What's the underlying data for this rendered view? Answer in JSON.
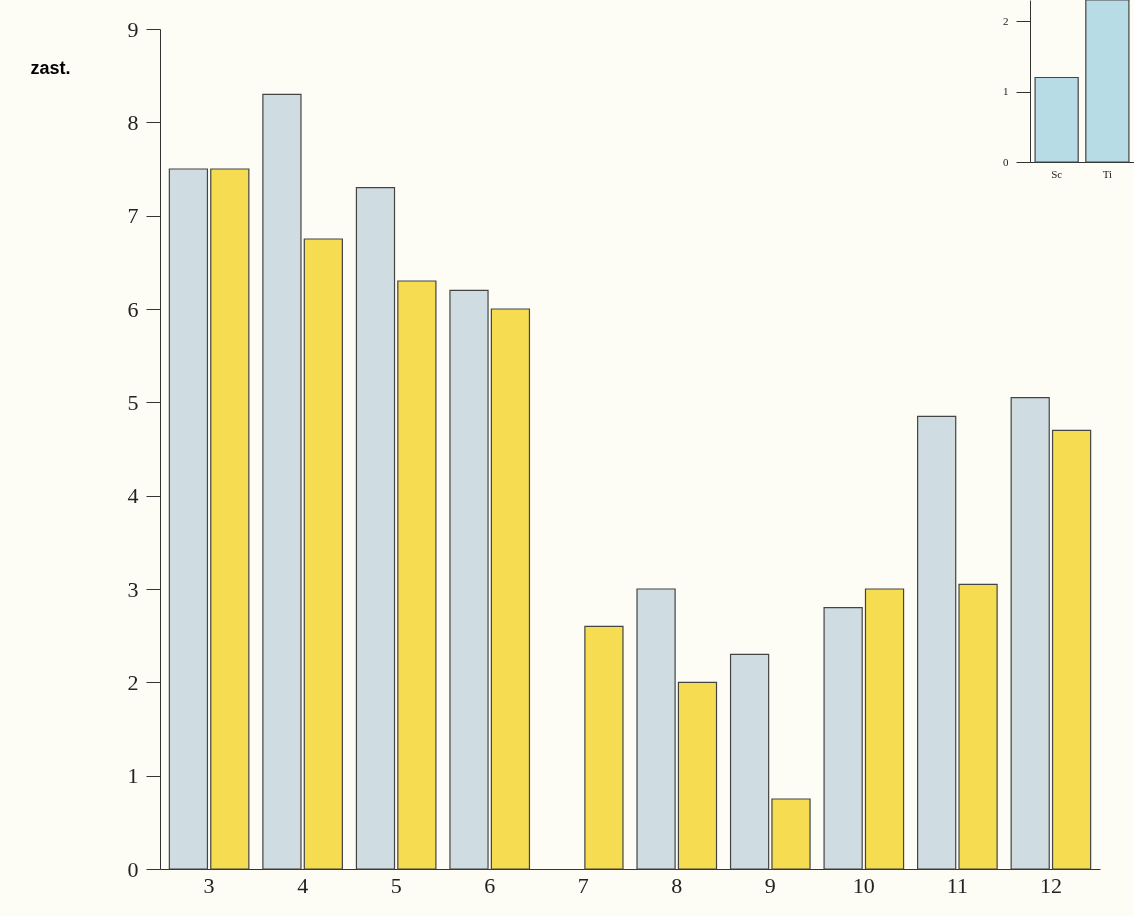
{
  "chart_data": [
    {
      "type": "bar",
      "ylabel": "zast.",
      "categories": [
        "3",
        "4",
        "5",
        "6",
        "7",
        "8",
        "9",
        "10",
        "11",
        "12"
      ],
      "ylim": [
        0,
        9
      ],
      "yticks": [
        0,
        1,
        2,
        3,
        4,
        5,
        6,
        7,
        8,
        9
      ],
      "series": [
        {
          "color": "#cfdde3",
          "values": [
            7.5,
            8.3,
            7.3,
            6.2,
            null,
            3.0,
            2.3,
            2.8,
            4.85,
            5.05
          ]
        },
        {
          "color": "#f5dc50",
          "values": [
            7.5,
            6.75,
            6.3,
            6.0,
            2.6,
            2.0,
            0.75,
            3.0,
            3.05,
            4.7
          ]
        }
      ]
    },
    {
      "type": "bar",
      "categories": [
        "Sc",
        "Ti"
      ],
      "ylim": [
        0,
        2.3
      ],
      "yticks": [
        0,
        1,
        2
      ],
      "series": [
        {
          "color": "#b8dce6",
          "values": [
            1.2,
            2.3
          ]
        }
      ]
    }
  ]
}
